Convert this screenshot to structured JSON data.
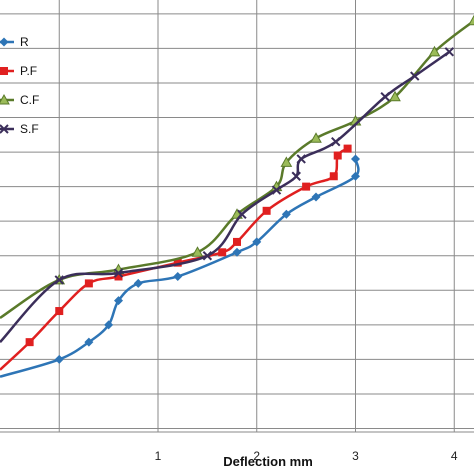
{
  "chart_data": {
    "type": "line",
    "title": "",
    "xlabel": "Deflection mm",
    "ylabel": "",
    "xlim": [
      -0.6,
      4.2
    ],
    "ylim": [
      -1.1,
      11.4
    ],
    "x_ticks": [
      1,
      2,
      3,
      4
    ],
    "y_grid_step": 1,
    "grid": true,
    "legend_position": "left",
    "series": [
      {
        "name": "R",
        "color": "#2E75B6",
        "marker": "diamond",
        "points": [
          [
            -0.6,
            0.5
          ],
          [
            0.0,
            1.0
          ],
          [
            0.3,
            1.5
          ],
          [
            0.5,
            2.0
          ],
          [
            0.6,
            2.7
          ],
          [
            0.8,
            3.2
          ],
          [
            1.2,
            3.4
          ],
          [
            1.8,
            4.1
          ],
          [
            2.0,
            4.4
          ],
          [
            2.3,
            5.2
          ],
          [
            2.6,
            5.7
          ],
          [
            3.0,
            6.3
          ],
          [
            3.0,
            6.8
          ]
        ]
      },
      {
        "name": "P.F",
        "color": "#E02020",
        "marker": "square",
        "points": [
          [
            -0.6,
            0.7
          ],
          [
            -0.3,
            1.5
          ],
          [
            0.0,
            2.4
          ],
          [
            0.3,
            3.2
          ],
          [
            0.6,
            3.4
          ],
          [
            1.2,
            3.8
          ],
          [
            1.65,
            4.1
          ],
          [
            1.8,
            4.4
          ],
          [
            2.1,
            5.3
          ],
          [
            2.5,
            6.0
          ],
          [
            2.78,
            6.3
          ],
          [
            2.82,
            6.9
          ],
          [
            2.92,
            7.1
          ]
        ]
      },
      {
        "name": "C.F",
        "color": "#5A7A2A",
        "marker": "triangle",
        "points": [
          [
            -0.6,
            2.2
          ],
          [
            0.0,
            3.3
          ],
          [
            0.6,
            3.6
          ],
          [
            1.4,
            4.1
          ],
          [
            1.8,
            5.2
          ],
          [
            2.2,
            6.0
          ],
          [
            2.3,
            6.7
          ],
          [
            2.6,
            7.4
          ],
          [
            3.0,
            7.9
          ],
          [
            3.4,
            8.6
          ],
          [
            3.8,
            9.9
          ],
          [
            4.2,
            10.8
          ]
        ]
      },
      {
        "name": "S.F",
        "color": "#3B2E5A",
        "marker": "x",
        "points": [
          [
            -0.6,
            1.5
          ],
          [
            0.0,
            3.3
          ],
          [
            0.6,
            3.5
          ],
          [
            1.5,
            4.0
          ],
          [
            1.85,
            5.2
          ],
          [
            2.2,
            5.9
          ],
          [
            2.4,
            6.3
          ],
          [
            2.45,
            6.8
          ],
          [
            2.8,
            7.3
          ],
          [
            3.3,
            8.6
          ],
          [
            3.6,
            9.2
          ],
          [
            3.95,
            9.9
          ]
        ]
      }
    ]
  }
}
